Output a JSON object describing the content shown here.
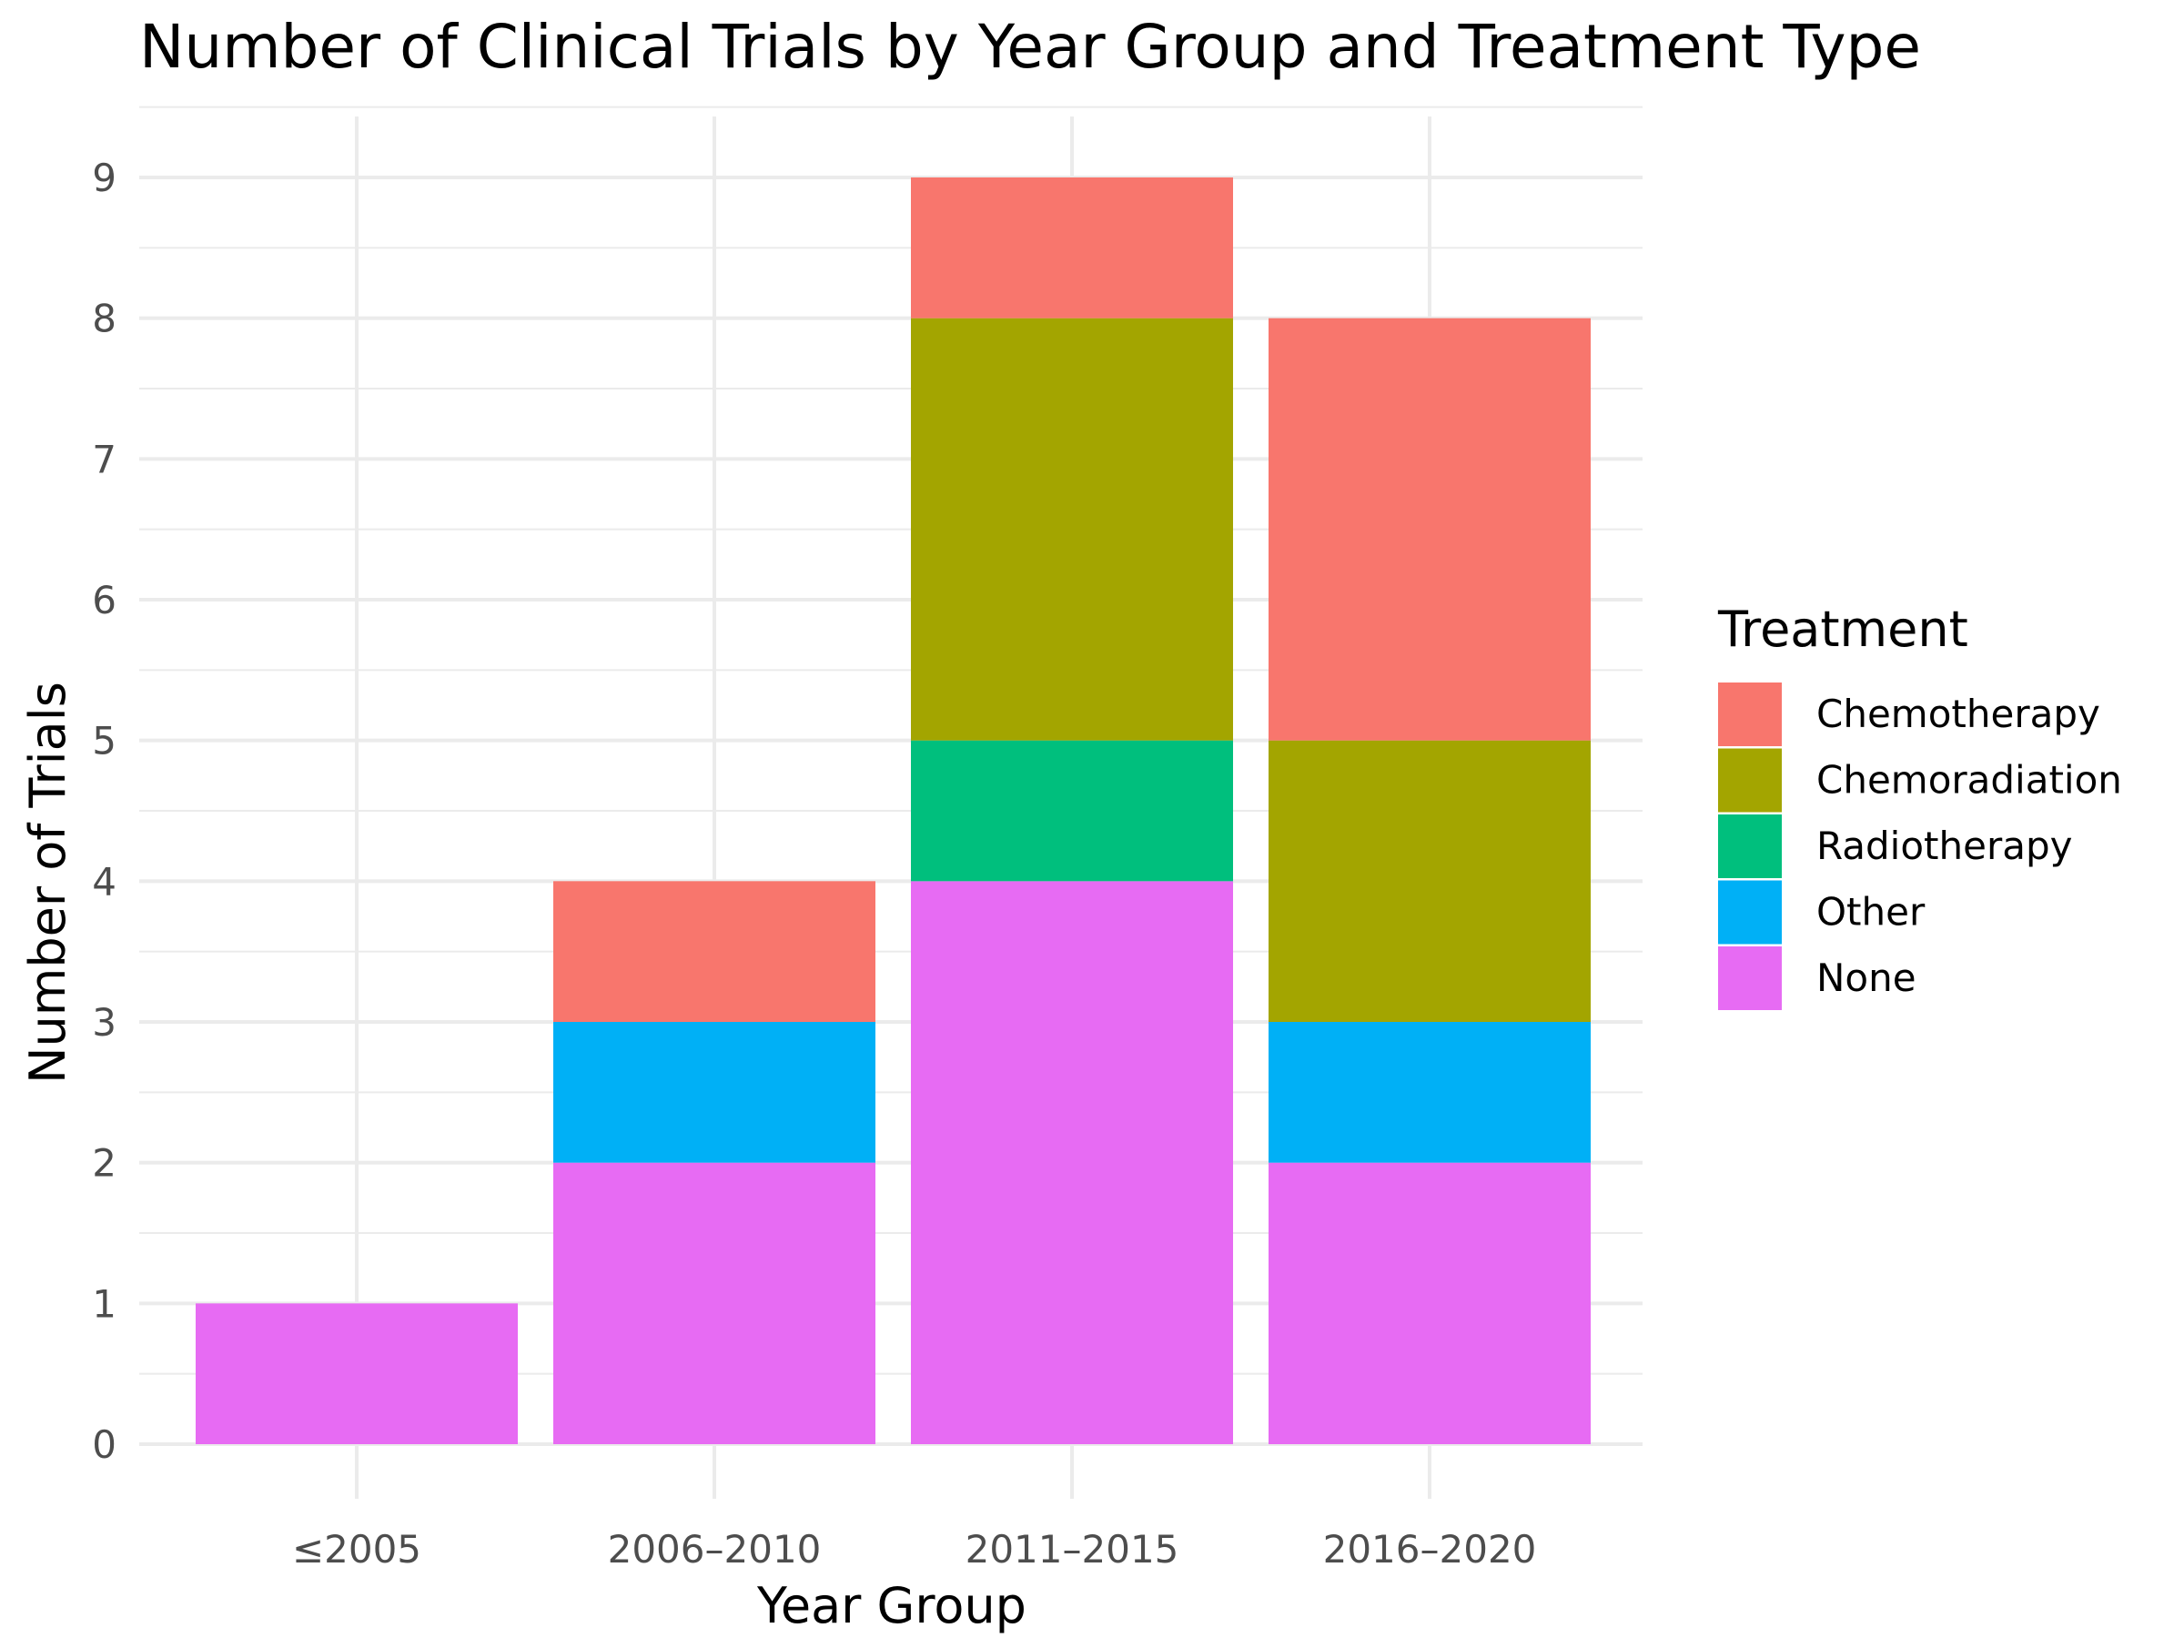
{
  "chart_data": {
    "type": "bar",
    "stacked": true,
    "title": "Number of Clinical Trials by Year Group and Treatment Type",
    "xlabel": "Year Group",
    "ylabel": "Number of Trials",
    "categories": [
      "≤2005",
      "2006–2010",
      "2011–2015",
      "2016–2020"
    ],
    "ylim": [
      0,
      9
    ],
    "yticks": [
      0,
      1,
      2,
      3,
      4,
      5,
      6,
      7,
      8,
      9
    ],
    "grid": true,
    "legend": {
      "title": "Treatment",
      "position": "right"
    },
    "series": [
      {
        "name": "Chemotherapy",
        "color": "#F8766D",
        "values": [
          0,
          1,
          1,
          3
        ]
      },
      {
        "name": "Chemoradiation",
        "color": "#A3A500",
        "values": [
          0,
          0,
          3,
          2
        ]
      },
      {
        "name": "Radiotherapy",
        "color": "#00BF7D",
        "values": [
          0,
          0,
          1,
          0
        ]
      },
      {
        "name": "Other",
        "color": "#00B0F6",
        "values": [
          0,
          1,
          0,
          1
        ]
      },
      {
        "name": "None",
        "color": "#E76BF3",
        "values": [
          1,
          2,
          4,
          2
        ]
      }
    ]
  }
}
